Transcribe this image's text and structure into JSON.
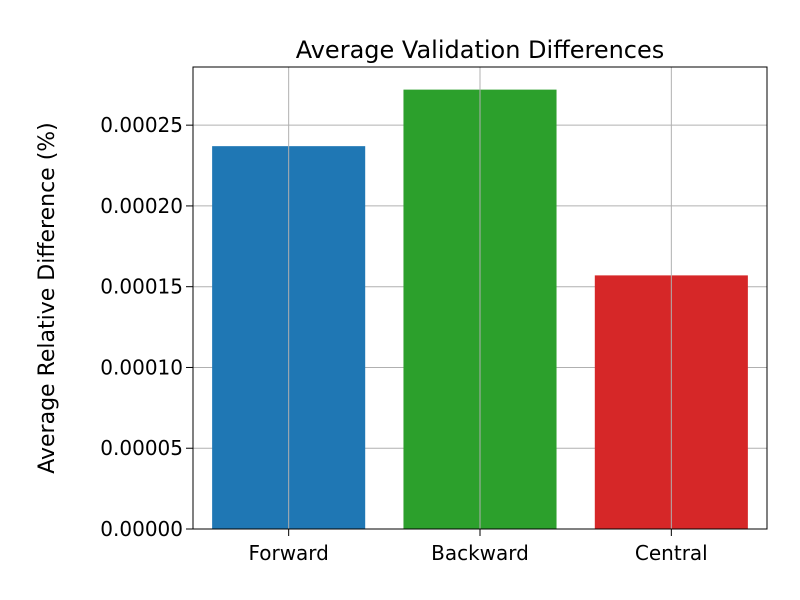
{
  "chart_data": {
    "type": "bar",
    "title": "Average Validation Differences",
    "xlabel": "",
    "ylabel": "Average Relative Difference (%)",
    "categories": [
      "Forward",
      "Backward",
      "Central"
    ],
    "values": [
      0.000237,
      0.000272,
      0.000157
    ],
    "bar_colors": [
      "#1f77b4",
      "#2ca02c",
      "#d62728"
    ],
    "ylim": [
      0,
      0.000286
    ],
    "yticks": [
      0,
      5e-05,
      0.0001,
      0.00015,
      0.0002,
      0.00025
    ],
    "ytick_labels": [
      "0.00000",
      "0.00005",
      "0.00010",
      "0.00015",
      "0.00020",
      "0.00025"
    ],
    "grid": true
  }
}
